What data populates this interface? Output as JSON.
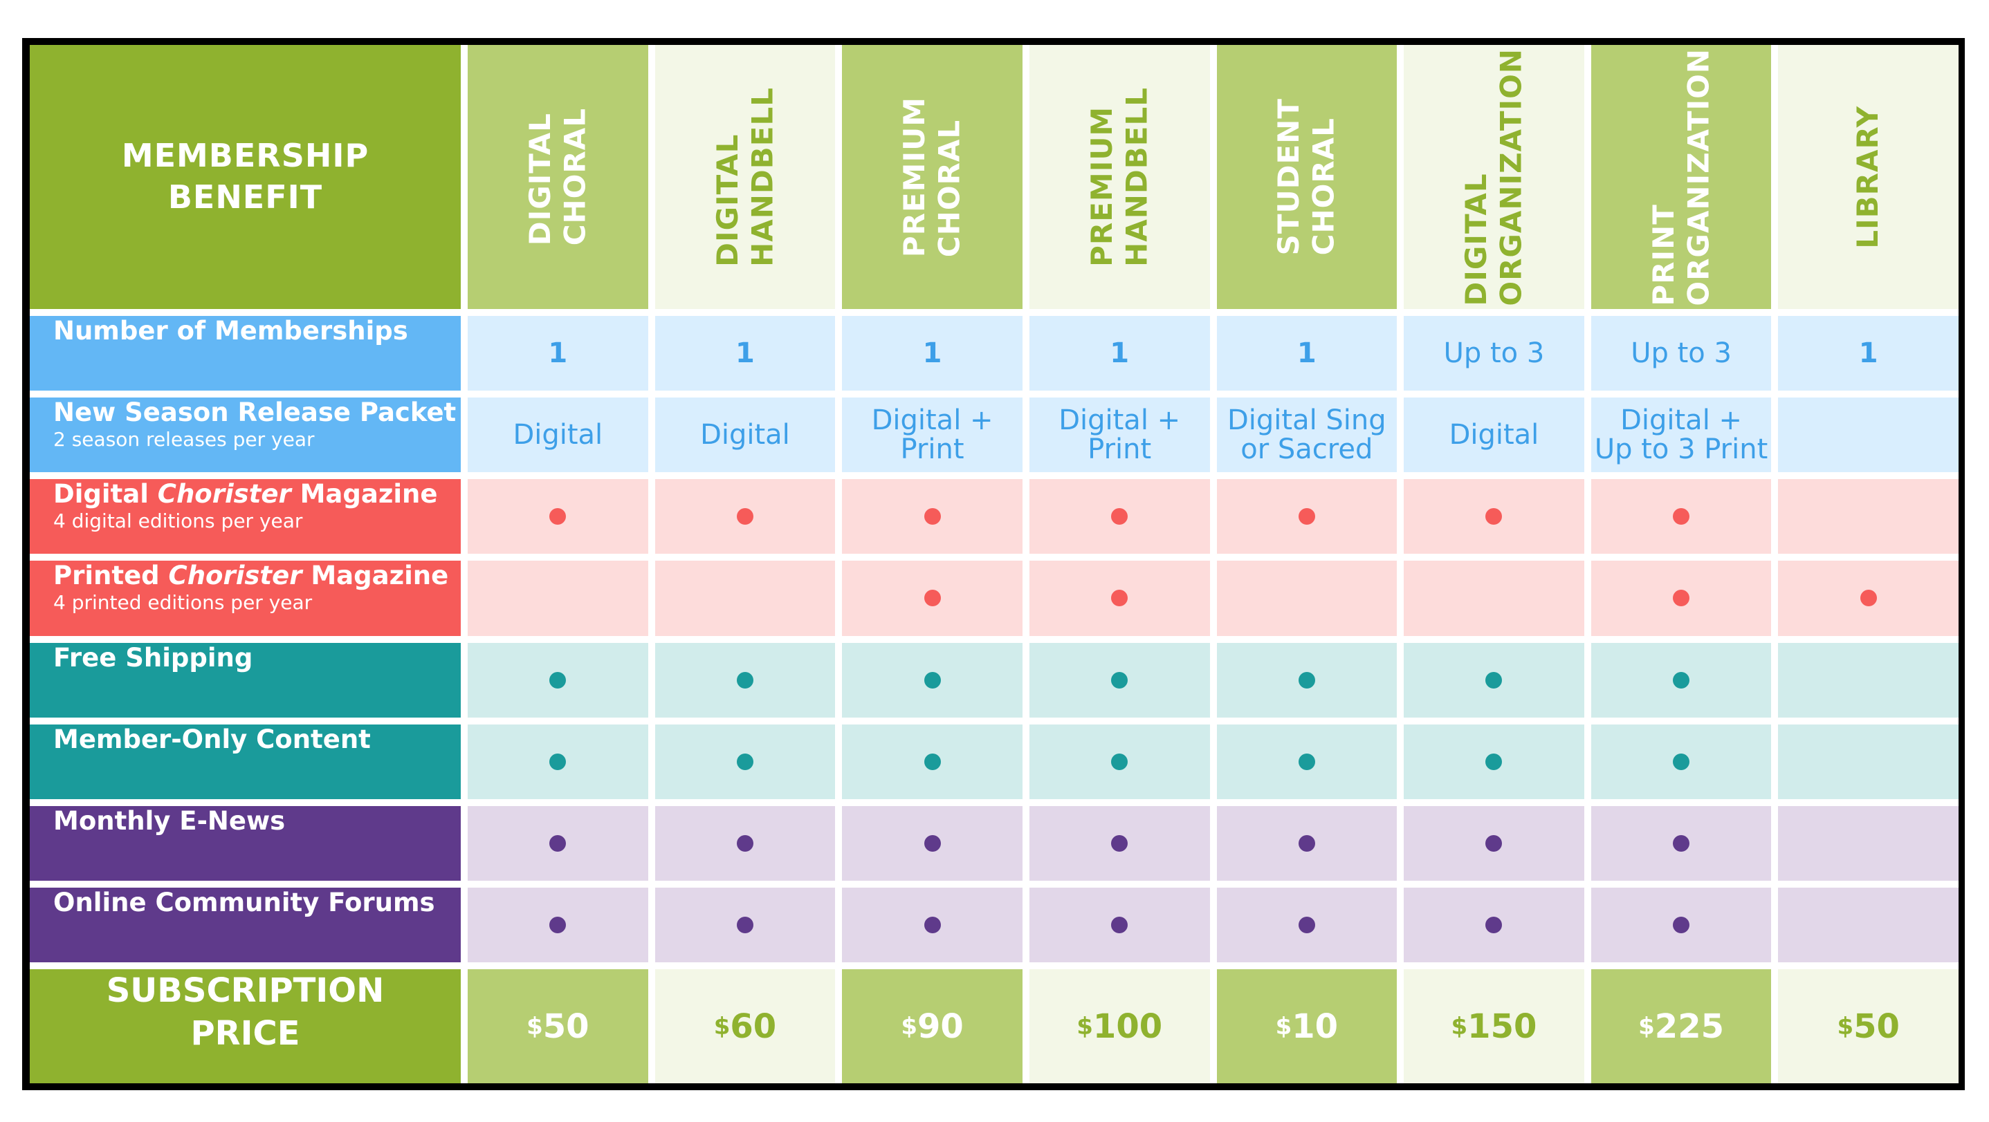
{
  "table": {
    "corner_header": [
      "MEMBERSHIP",
      "BENEFIT"
    ],
    "columns": [
      {
        "lines": [
          "DIGITAL",
          "CHORAL"
        ]
      },
      {
        "lines": [
          "DIGITAL",
          "HANDBELL"
        ]
      },
      {
        "lines": [
          "PREMIUM",
          "CHORAL"
        ]
      },
      {
        "lines": [
          "PREMIUM",
          "HANDBELL"
        ]
      },
      {
        "lines": [
          "STUDENT",
          "CHORAL"
        ]
      },
      {
        "lines": [
          "DIGITAL",
          "ORGANIZATION"
        ]
      },
      {
        "lines": [
          "PRINT",
          "ORGANIZATION"
        ]
      },
      {
        "lines": [
          "LIBRARY"
        ]
      }
    ],
    "rows": [
      {
        "label": "Number of Memberships",
        "sub": "",
        "group": "blue",
        "kind": "text",
        "values": [
          "1",
          "1",
          "1",
          "1",
          "1",
          "Up to 3",
          "Up to 3",
          "1"
        ]
      },
      {
        "label": "New Season Release Packet",
        "sub": "2 season releases per year",
        "group": "blue",
        "kind": "text",
        "values": [
          [
            "Digital"
          ],
          [
            "Digital"
          ],
          [
            "Digital +",
            "Print"
          ],
          [
            "Digital +",
            "Print"
          ],
          [
            "Digital Sing",
            "or Sacred"
          ],
          [
            "Digital"
          ],
          [
            "Digital +",
            "Up to 3 Print"
          ],
          []
        ]
      },
      {
        "label_pre": "Digital ",
        "label_italic": "Chorister",
        "label_post": " Magazine",
        "sub": "4 digital editions per year",
        "group": "red",
        "kind": "dots",
        "values": [
          true,
          true,
          true,
          true,
          true,
          true,
          true,
          false
        ]
      },
      {
        "label_pre": "Printed ",
        "label_italic": "Chorister",
        "label_post": " Magazine",
        "sub": "4 printed editions per year",
        "group": "red",
        "kind": "dots",
        "values": [
          false,
          false,
          true,
          true,
          false,
          false,
          true,
          true
        ]
      },
      {
        "label": "Free Shipping",
        "sub": "",
        "group": "teal",
        "kind": "dots",
        "values": [
          true,
          true,
          true,
          true,
          true,
          true,
          true,
          false
        ]
      },
      {
        "label": "Member-Only Content",
        "sub": "",
        "group": "teal",
        "kind": "dots",
        "values": [
          true,
          true,
          true,
          true,
          true,
          true,
          true,
          false
        ]
      },
      {
        "label": "Monthly E-News",
        "sub": "",
        "group": "purple",
        "kind": "dots",
        "values": [
          true,
          true,
          true,
          true,
          true,
          true,
          true,
          false
        ]
      },
      {
        "label": "Online Community Forums",
        "sub": "",
        "group": "purple",
        "kind": "dots",
        "values": [
          true,
          true,
          true,
          true,
          true,
          true,
          true,
          false
        ]
      }
    ],
    "price_header": [
      "SUBSCRIPTION",
      "PRICE"
    ],
    "currency_symbol": "$",
    "prices": [
      "50",
      "60",
      "90",
      "100",
      "10",
      "150",
      "225",
      "50"
    ]
  },
  "colors": {
    "green": "#8fb22f",
    "green_mid": "#b6ce72",
    "green_light": "#f3f7e7",
    "blue": "#63b7f5",
    "red": "#f65b59",
    "teal": "#1a9b9b",
    "purple": "#5f3a8b"
  }
}
